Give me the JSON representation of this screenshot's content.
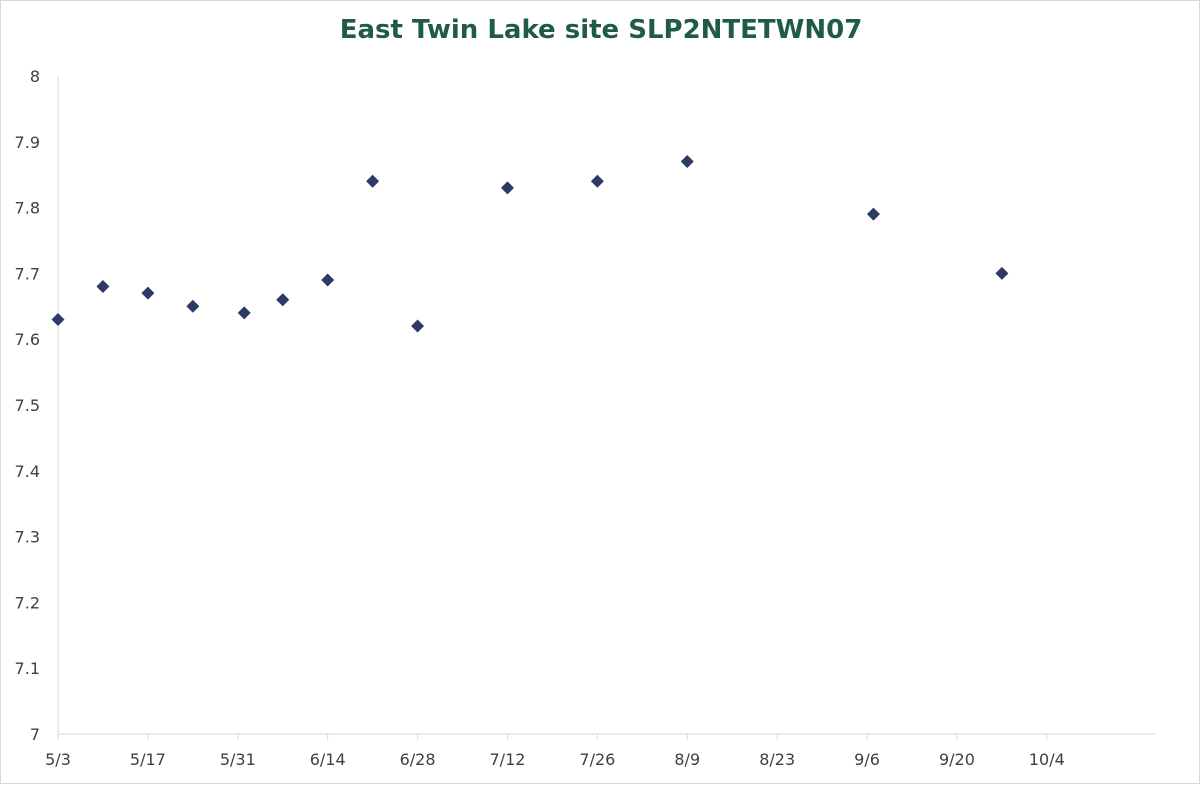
{
  "chart_data": {
    "type": "scatter",
    "title": "East Twin Lake site SLP2NTETWN07",
    "xlabel": "",
    "ylabel": "",
    "x_axis_type": "date",
    "x_tick_labels": [
      "5/3",
      "5/17",
      "5/31",
      "6/14",
      "6/28",
      "7/12",
      "7/26",
      "8/9",
      "8/23",
      "9/6",
      "9/20",
      "10/4"
    ],
    "xlim": [
      "5/3",
      "10/21"
    ],
    "y_tick_labels": [
      "7",
      "7.1",
      "7.2",
      "7.3",
      "7.4",
      "7.5",
      "7.6",
      "7.7",
      "7.8",
      "7.9",
      "8"
    ],
    "ylim": [
      7,
      8
    ],
    "grid": false,
    "legend": "none",
    "marker": "diamond",
    "marker_color": "#2e3a66",
    "series": [
      {
        "points": [
          {
            "x": "5/3",
            "y": 7.63
          },
          {
            "x": "5/10",
            "y": 7.68
          },
          {
            "x": "5/17",
            "y": 7.67
          },
          {
            "x": "5/24",
            "y": 7.65
          },
          {
            "x": "6/1",
            "y": 7.64
          },
          {
            "x": "6/7",
            "y": 7.66
          },
          {
            "x": "6/14",
            "y": 7.69
          },
          {
            "x": "6/21",
            "y": 7.84
          },
          {
            "x": "6/28",
            "y": 7.62
          },
          {
            "x": "7/12",
            "y": 7.83
          },
          {
            "x": "7/26",
            "y": 7.84
          },
          {
            "x": "8/9",
            "y": 7.87
          },
          {
            "x": "9/7",
            "y": 7.79
          },
          {
            "x": "9/27",
            "y": 7.7
          }
        ]
      }
    ]
  }
}
